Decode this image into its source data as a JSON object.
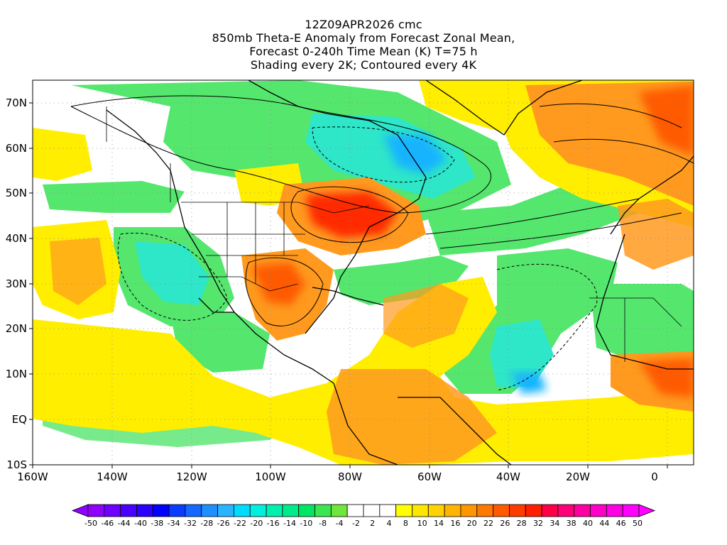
{
  "title": {
    "line1": "12Z09APR2026 cmc",
    "line2": "850mb Theta-E Anomaly from Forecast Zonal Mean,",
    "line3": "Forecast 0-240h Time Mean (K) T=75 h",
    "line4": "Shading every 2K; Contoured every 4K"
  },
  "axes": {
    "lat_labels": [
      "70N",
      "60N",
      "50N",
      "40N",
      "30N",
      "20N",
      "10N",
      "EQ",
      "10S"
    ],
    "lon_labels": [
      "160W",
      "140W",
      "120W",
      "100W",
      "80W",
      "60W",
      "40W",
      "20W",
      "0"
    ],
    "lat_range": [
      -10,
      75
    ],
    "lon_range": [
      -160,
      10
    ]
  },
  "colorbar": {
    "labels": [
      "-50",
      "-46",
      "-44",
      "-40",
      "-38",
      "-34",
      "-32",
      "-28",
      "-26",
      "-22",
      "-20",
      "-16",
      "-14",
      "-10",
      "-8",
      "-4",
      "-2",
      "2",
      "4",
      "8",
      "10",
      "14",
      "16",
      "20",
      "22",
      "26",
      "28",
      "32",
      "34",
      "38",
      "40",
      "44",
      "46",
      "50"
    ],
    "colors": [
      "#8f00ff",
      "#6f00ff",
      "#4a00ff",
      "#2a00ff",
      "#0000ff",
      "#0a3cff",
      "#1467ff",
      "#1e8fff",
      "#28b4ff",
      "#00dcff",
      "#00f0e0",
      "#00f0b0",
      "#00eb8a",
      "#00e664",
      "#3ce650",
      "#6ee63c",
      "#ffffff",
      "#ffffff",
      "#ffffff",
      "#ffff00",
      "#ffe600",
      "#ffd200",
      "#ffb400",
      "#ff9600",
      "#ff7800",
      "#ff5a00",
      "#ff3c00",
      "#ff1e00",
      "#ff0046",
      "#ff0078",
      "#ff00a0",
      "#ff00c8",
      "#ff00e6",
      "#ff00ff"
    ]
  },
  "map_colors": {
    "ocean_neutral": "#ffffff",
    "positive_yellow": "#ffee00",
    "positive_orange": "#ff9a1e",
    "positive_red": "#ff2a00",
    "negative_green": "#55e66e",
    "negative_cyan": "#2ee6c8",
    "negative_blue": "#14b4ff"
  }
}
